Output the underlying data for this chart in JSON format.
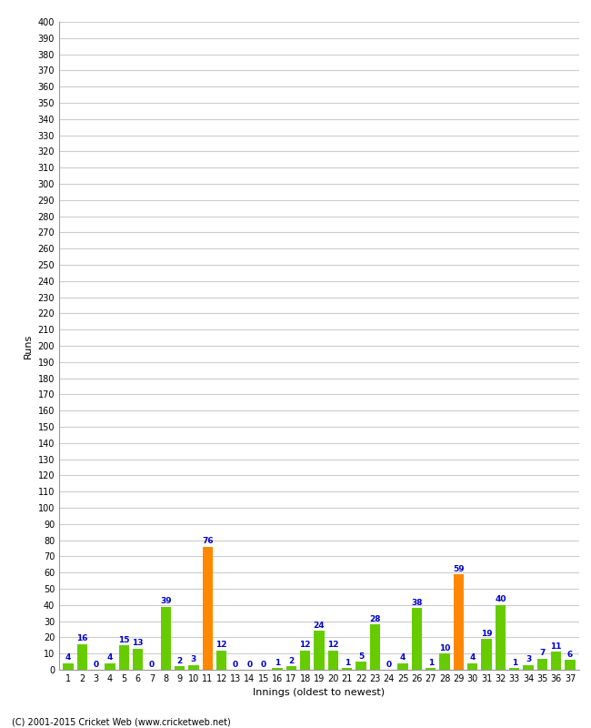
{
  "xlabel": "Innings (oldest to newest)",
  "ylabel": "Runs",
  "footer": "(C) 2001-2015 Cricket Web (www.cricketweb.net)",
  "innings": [
    1,
    2,
    3,
    4,
    5,
    6,
    7,
    8,
    9,
    10,
    11,
    12,
    13,
    14,
    15,
    16,
    17,
    18,
    19,
    20,
    21,
    22,
    23,
    24,
    25,
    26,
    27,
    28,
    29,
    30,
    31,
    32,
    33,
    34,
    35,
    36,
    37
  ],
  "values": [
    4,
    16,
    0,
    4,
    15,
    13,
    0,
    39,
    2,
    3,
    76,
    12,
    0,
    0,
    0,
    1,
    2,
    12,
    24,
    12,
    1,
    5,
    28,
    0,
    4,
    38,
    1,
    10,
    59,
    4,
    19,
    40,
    1,
    3,
    7,
    11,
    6
  ],
  "orange_indices": [
    10,
    28
  ],
  "ylim": [
    0,
    400
  ],
  "yticks": [
    0,
    10,
    20,
    30,
    40,
    50,
    60,
    70,
    80,
    90,
    100,
    110,
    120,
    130,
    140,
    150,
    160,
    170,
    180,
    190,
    200,
    210,
    220,
    230,
    240,
    250,
    260,
    270,
    280,
    290,
    300,
    310,
    320,
    330,
    340,
    350,
    360,
    370,
    380,
    390,
    400
  ],
  "green_color": "#66cc00",
  "orange_color": "#ff8800",
  "bar_label_color": "#0000cc",
  "grid_color": "#cccccc",
  "bg_color": "#ffffff",
  "title_fontsize": 9,
  "axis_label_fontsize": 8,
  "tick_fontsize": 7,
  "bar_label_fontsize": 6.5
}
